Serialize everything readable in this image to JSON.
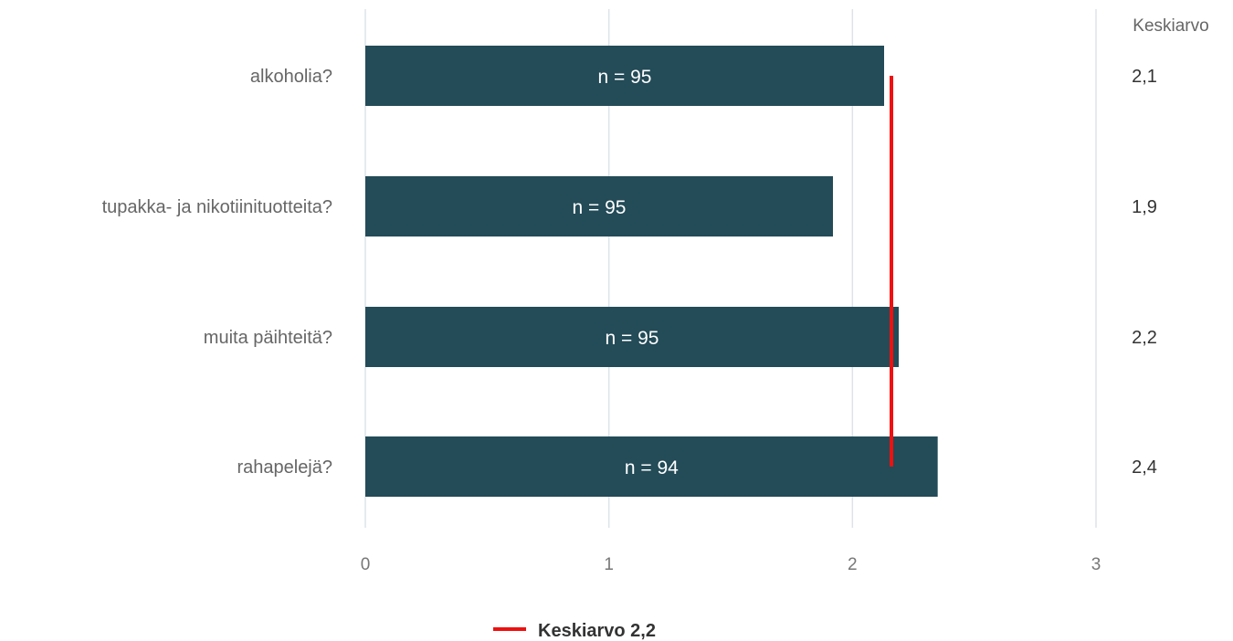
{
  "chart_data": {
    "type": "bar",
    "orientation": "horizontal",
    "categories": [
      "alkoholia?",
      "tupakka- ja nikotiinituotteita?",
      "muita päihteitä?",
      "rahapelejä?"
    ],
    "values": [
      2.13,
      1.92,
      2.19,
      2.35
    ],
    "n_labels": [
      "n = 95",
      "n = 95",
      "n = 95",
      "n = 94"
    ],
    "mean_column_header": "Keskiarvo",
    "mean_labels": [
      "2,1",
      "1,9",
      "2,2",
      "2,4"
    ],
    "x_ticks": [
      "0",
      "1",
      "2",
      "3"
    ],
    "xlim": [
      0,
      3
    ],
    "overall_mean": 2.16,
    "legend": {
      "label": "Keskiarvo 2,2",
      "position": "bottom"
    },
    "grid": true,
    "colors": {
      "bar": "#234b58",
      "mean_line": "#ee1111",
      "grid": "#dde3ea"
    }
  }
}
